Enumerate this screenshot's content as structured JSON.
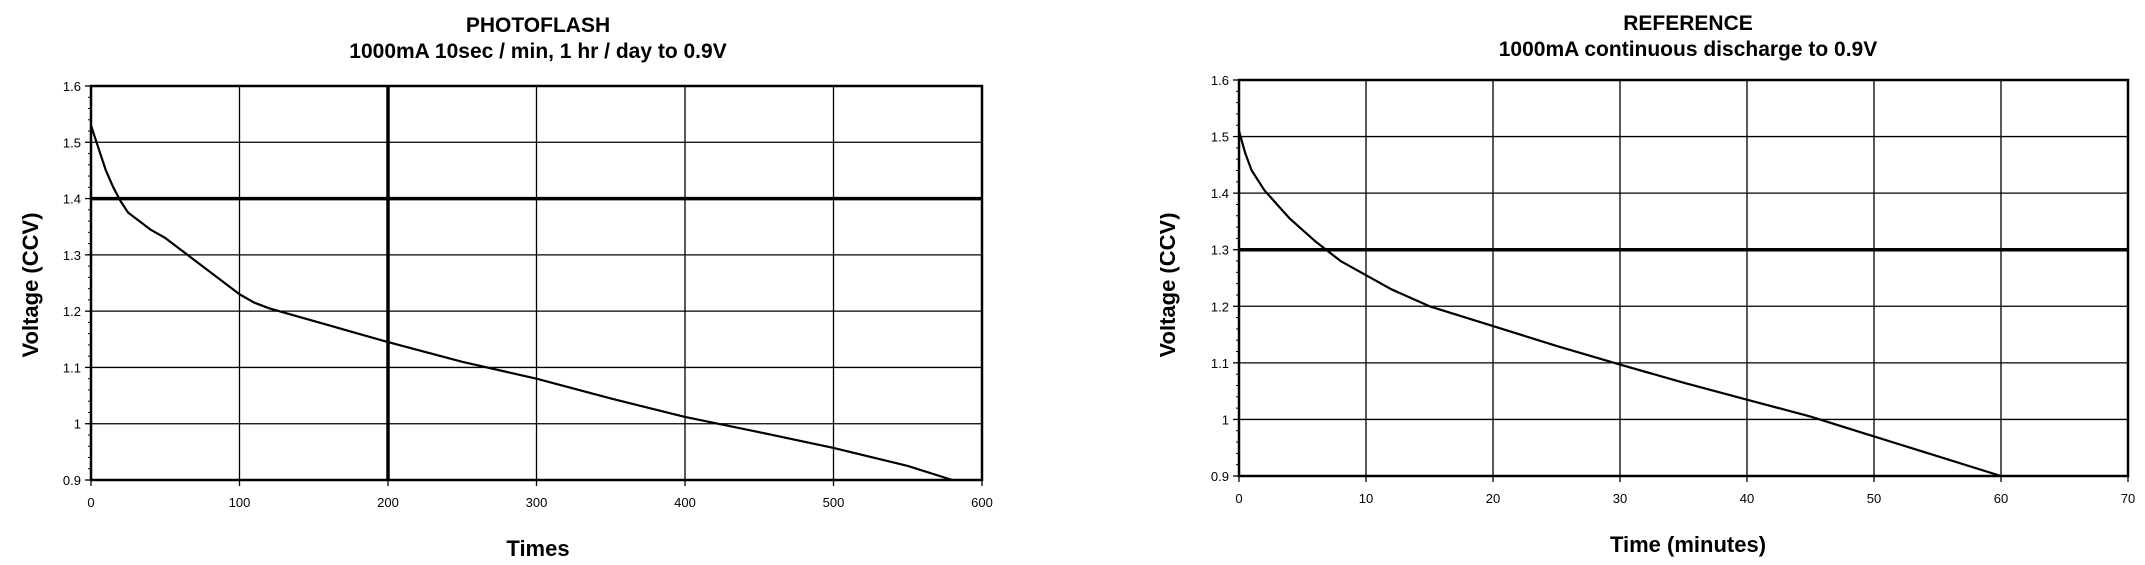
{
  "chart_data": [
    {
      "type": "line",
      "title": "PHOTOFLASH",
      "subtitle": "1000mA 10sec / min, 1 hr / day to 0.9V",
      "xlabel": "Times",
      "ylabel": "Voltage (CCV)",
      "xlim": [
        0,
        600
      ],
      "ylim": [
        0.9,
        1.6
      ],
      "xticks": [
        "0",
        "100",
        "200",
        "300",
        "400",
        "500",
        "600"
      ],
      "yticks": [
        "0.9",
        "1",
        "1.1",
        "1.2",
        "1.3",
        "1.4",
        "1.5",
        "1.6"
      ],
      "grid": true,
      "emphasized_gridlines": {
        "x": [
          200
        ],
        "y": [
          1.4
        ]
      },
      "series": [
        {
          "x": [
            0,
            5,
            10,
            15,
            20,
            25,
            30,
            40,
            50,
            60,
            70,
            80,
            90,
            100,
            110,
            120,
            140,
            160,
            180,
            200,
            250,
            300,
            350,
            400,
            450,
            500,
            550,
            580
          ],
          "y": [
            1.53,
            1.49,
            1.45,
            1.42,
            1.395,
            1.375,
            1.365,
            1.345,
            1.33,
            1.31,
            1.29,
            1.27,
            1.25,
            1.23,
            1.215,
            1.205,
            1.19,
            1.175,
            1.16,
            1.145,
            1.11,
            1.08,
            1.045,
            1.012,
            0.985,
            0.957,
            0.925,
            0.9
          ]
        }
      ]
    },
    {
      "type": "line",
      "title": "REFERENCE",
      "subtitle": "1000mA continuous discharge to 0.9V",
      "xlabel": "Time (minutes)",
      "ylabel": "Voltage (CCV)",
      "xlim": [
        0,
        70
      ],
      "ylim": [
        0.9,
        1.6
      ],
      "xticks": [
        "0",
        "10",
        "20",
        "30",
        "40",
        "50",
        "60",
        "70"
      ],
      "yticks": [
        "0.9",
        "1",
        "1.1",
        "1.2",
        "1.3",
        "1.4",
        "1.5",
        "1.6"
      ],
      "grid": true,
      "emphasized_gridlines": {
        "x": [],
        "y": [
          1.3
        ]
      },
      "series": [
        {
          "x": [
            0,
            0.5,
            1,
            2,
            3,
            4,
            5,
            6,
            8,
            10,
            12,
            15,
            20,
            25,
            30,
            35,
            40,
            45,
            50,
            55,
            60
          ],
          "y": [
            1.51,
            1.47,
            1.44,
            1.405,
            1.38,
            1.355,
            1.335,
            1.315,
            1.28,
            1.255,
            1.23,
            1.2,
            1.165,
            1.13,
            1.097,
            1.065,
            1.035,
            1.005,
            0.97,
            0.935,
            0.9
          ]
        }
      ]
    }
  ]
}
